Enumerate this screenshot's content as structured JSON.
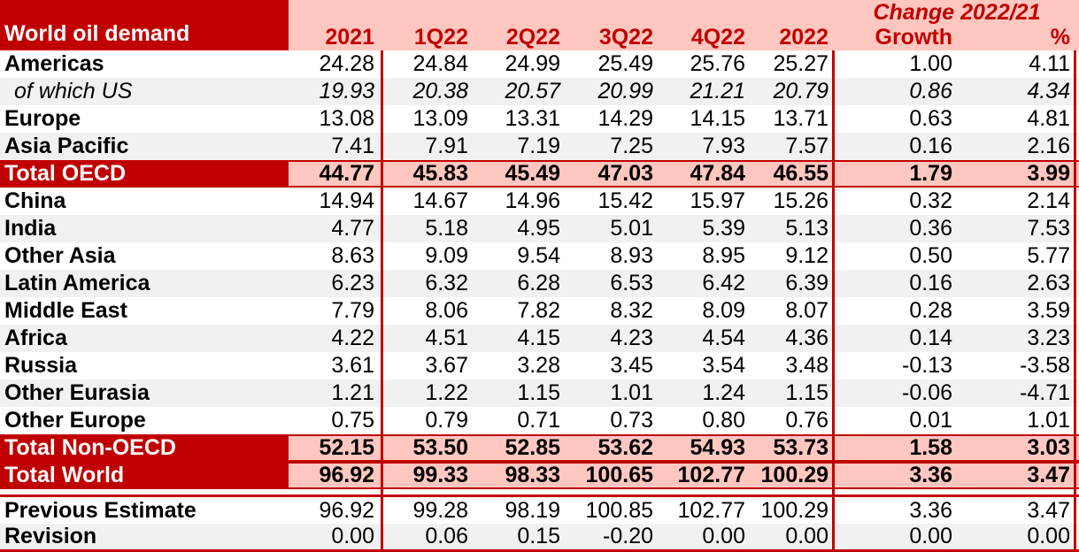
{
  "chart_data": {
    "type": "table",
    "title": "World oil demand",
    "change_header": "Change 2022/21",
    "columns": [
      "2021",
      "1Q22",
      "2Q22",
      "3Q22",
      "4Q22",
      "2022",
      "Growth",
      "%"
    ],
    "rows": [
      {
        "label": "Americas",
        "variant": "white",
        "italic": false,
        "values": [
          "24.28",
          "24.84",
          "24.99",
          "25.49",
          "25.76",
          "25.27",
          "1.00",
          "4.11"
        ]
      },
      {
        "label": "of which US",
        "variant": "gray",
        "italic": true,
        "values": [
          "19.93",
          "20.38",
          "20.57",
          "20.99",
          "21.21",
          "20.79",
          "0.86",
          "4.34"
        ]
      },
      {
        "label": "Europe",
        "variant": "white",
        "italic": false,
        "values": [
          "13.08",
          "13.09",
          "13.31",
          "14.29",
          "14.15",
          "13.71",
          "0.63",
          "4.81"
        ]
      },
      {
        "label": "Asia Pacific",
        "variant": "gray",
        "italic": false,
        "values": [
          "7.41",
          "7.91",
          "7.19",
          "7.25",
          "7.93",
          "7.57",
          "0.16",
          "2.16"
        ]
      },
      {
        "label": "Total OECD",
        "variant": "total",
        "italic": false,
        "values": [
          "44.77",
          "45.83",
          "45.49",
          "47.03",
          "47.84",
          "46.55",
          "1.79",
          "3.99"
        ]
      },
      {
        "label": "China",
        "variant": "white",
        "italic": false,
        "values": [
          "14.94",
          "14.67",
          "14.96",
          "15.42",
          "15.97",
          "15.26",
          "0.32",
          "2.14"
        ]
      },
      {
        "label": "India",
        "variant": "gray",
        "italic": false,
        "values": [
          "4.77",
          "5.18",
          "4.95",
          "5.01",
          "5.39",
          "5.13",
          "0.36",
          "7.53"
        ]
      },
      {
        "label": "Other Asia",
        "variant": "white",
        "italic": false,
        "values": [
          "8.63",
          "9.09",
          "9.54",
          "8.93",
          "8.95",
          "9.12",
          "0.50",
          "5.77"
        ]
      },
      {
        "label": "Latin America",
        "variant": "gray",
        "italic": false,
        "values": [
          "6.23",
          "6.32",
          "6.28",
          "6.53",
          "6.42",
          "6.39",
          "0.16",
          "2.63"
        ]
      },
      {
        "label": "Middle East",
        "variant": "white",
        "italic": false,
        "values": [
          "7.79",
          "8.06",
          "7.82",
          "8.32",
          "8.09",
          "8.07",
          "0.28",
          "3.59"
        ]
      },
      {
        "label": "Africa",
        "variant": "gray",
        "italic": false,
        "values": [
          "4.22",
          "4.51",
          "4.15",
          "4.23",
          "4.54",
          "4.36",
          "0.14",
          "3.23"
        ]
      },
      {
        "label": "Russia",
        "variant": "white",
        "italic": false,
        "values": [
          "3.61",
          "3.67",
          "3.28",
          "3.45",
          "3.54",
          "3.48",
          "-0.13",
          "-3.58"
        ]
      },
      {
        "label": "Other Eurasia",
        "variant": "gray",
        "italic": false,
        "values": [
          "1.21",
          "1.22",
          "1.15",
          "1.01",
          "1.24",
          "1.15",
          "-0.06",
          "-4.71"
        ]
      },
      {
        "label": "Other Europe",
        "variant": "white",
        "italic": false,
        "values": [
          "0.75",
          "0.79",
          "0.71",
          "0.73",
          "0.80",
          "0.76",
          "0.01",
          "1.01"
        ]
      },
      {
        "label": "Total Non-OECD",
        "variant": "total",
        "italic": false,
        "values": [
          "52.15",
          "53.50",
          "52.85",
          "53.62",
          "54.93",
          "53.73",
          "1.58",
          "3.03"
        ]
      },
      {
        "label": "Total World",
        "variant": "total",
        "italic": false,
        "values": [
          "96.92",
          "99.33",
          "98.33",
          "100.65",
          "102.77",
          "100.29",
          "3.36",
          "3.47"
        ]
      },
      {
        "label": "Previous Estimate",
        "variant": "white",
        "italic": false,
        "values": [
          "96.92",
          "99.28",
          "98.19",
          "100.85",
          "102.77",
          "100.29",
          "3.36",
          "3.47"
        ]
      },
      {
        "label": "Revision",
        "variant": "gray",
        "italic": false,
        "values": [
          "0.00",
          "0.06",
          "0.15",
          "-0.20",
          "0.00",
          "0.00",
          "0.00",
          "0.00"
        ]
      }
    ],
    "colors": {
      "dark_red": "#C00000",
      "pink": "#FFC7C0",
      "row_stripe": "#F1F1F1",
      "header_text_on_red": "#FFFFFF",
      "header_text_on_pink": "#C00000",
      "value_text": "#000000"
    },
    "layout_hints": {
      "grid": "off",
      "value_alignment": "right",
      "change_header_spans": [
        "Growth",
        "%"
      ]
    }
  }
}
